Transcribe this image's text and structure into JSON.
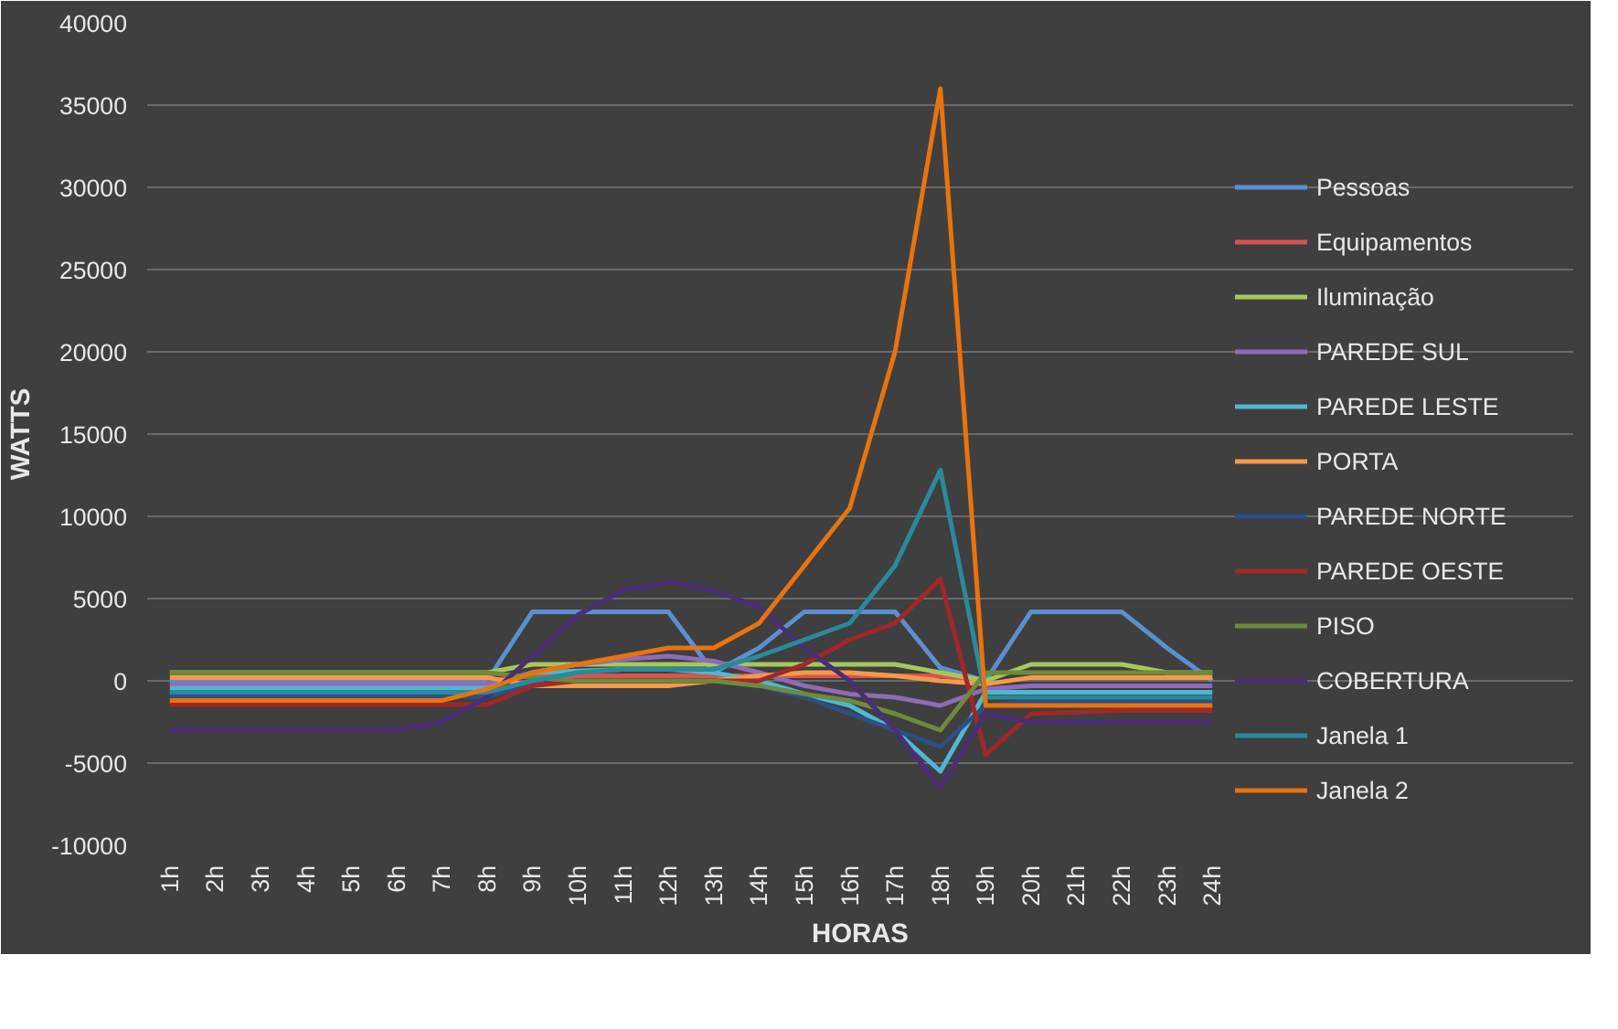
{
  "chart_data": {
    "type": "line",
    "xlabel": "HORAS",
    "ylabel": "WATTS",
    "categories": [
      "1h",
      "2h",
      "3h",
      "4h",
      "5h",
      "6h",
      "7h",
      "8h",
      "9h",
      "10h",
      "11h",
      "12h",
      "13h",
      "14h",
      "15h",
      "16h",
      "17h",
      "18h",
      "19h",
      "20h",
      "21h",
      "22h",
      "23h",
      "24h"
    ],
    "ylim": [
      -10000,
      40000
    ],
    "yticks": [
      -10000,
      -5000,
      0,
      5000,
      10000,
      15000,
      20000,
      25000,
      30000,
      35000,
      40000
    ],
    "grid": "y",
    "legend": "right",
    "marker": "none",
    "line_style": "solid",
    "series": [
      {
        "name": "Pessoas",
        "color": "#5b8fd0",
        "values": [
          0,
          0,
          0,
          0,
          0,
          0,
          0,
          0,
          4200,
          4200,
          4200,
          4200,
          500,
          2000,
          4200,
          4200,
          4200,
          800,
          0,
          4200,
          4200,
          4200,
          2000,
          0
        ]
      },
      {
        "name": "Equipamentos",
        "color": "#d9534f",
        "values": [
          null,
          null,
          null,
          null,
          null,
          null,
          null,
          0,
          300,
          300,
          300,
          300,
          300,
          300,
          300,
          300,
          300,
          300,
          0,
          null,
          null,
          null,
          null,
          null
        ]
      },
      {
        "name": "Iluminação",
        "color": "#a6c85a",
        "values": [
          500,
          500,
          500,
          500,
          500,
          500,
          500,
          500,
          1000,
          1000,
          1000,
          1000,
          1000,
          1000,
          1000,
          1000,
          1000,
          500,
          0,
          1000,
          1000,
          1000,
          500,
          500
        ]
      },
      {
        "name": "PAREDE SUL",
        "color": "#8e6bb8",
        "values": [
          -200,
          -200,
          -200,
          -200,
          -200,
          -200,
          -200,
          -200,
          500,
          1000,
          1300,
          1500,
          1200,
          500,
          -300,
          -800,
          -1000,
          -1500,
          -500,
          -300,
          -300,
          -300,
          -300,
          -300
        ]
      },
      {
        "name": "PAREDE LESTE",
        "color": "#4fb8d0",
        "values": [
          -450,
          -450,
          -450,
          -450,
          -450,
          -450,
          -450,
          -450,
          500,
          600,
          700,
          700,
          500,
          0,
          -800,
          -1500,
          -3000,
          -5500,
          -700,
          -700,
          -700,
          -700,
          -700,
          -700
        ]
      },
      {
        "name": "PORTA",
        "color": "#f49a4a",
        "values": [
          200,
          200,
          200,
          200,
          200,
          200,
          200,
          200,
          -300,
          -300,
          -300,
          -300,
          0,
          300,
          500,
          500,
          300,
          0,
          -200,
          200,
          200,
          200,
          200,
          200
        ]
      },
      {
        "name": "PAREDE NORTE",
        "color": "#2e4f86",
        "values": [
          -950,
          -950,
          -950,
          -950,
          -950,
          -950,
          -950,
          -950,
          -200,
          0,
          0,
          0,
          0,
          -300,
          -1000,
          -2000,
          -3000,
          -4000,
          -1500,
          -1250,
          -1250,
          -1250,
          -1250,
          -1250
        ]
      },
      {
        "name": "PAREDE OESTE",
        "color": "#a0282a",
        "values": [
          -1450,
          -1450,
          -1450,
          -1450,
          -1450,
          -1450,
          -1450,
          -1450,
          -300,
          0,
          0,
          0,
          0,
          0,
          1000,
          2500,
          3500,
          6200,
          -4500,
          -2000,
          -1900,
          -1800,
          -1800,
          -1800
        ]
      },
      {
        "name": "PISO",
        "color": "#6e8a3a",
        "values": [
          500,
          500,
          500,
          500,
          500,
          500,
          500,
          500,
          200,
          0,
          0,
          0,
          0,
          -300,
          -800,
          -1200,
          -2000,
          -3000,
          500,
          500,
          500,
          500,
          500,
          500
        ]
      },
      {
        "name": "COBERTURA",
        "color": "#4a2e78",
        "values": [
          -3000,
          -3000,
          -3000,
          -3000,
          -3000,
          -3000,
          -2500,
          -1000,
          1500,
          4000,
          5500,
          6000,
          5500,
          4500,
          2000,
          0,
          -3000,
          -6500,
          -2000,
          -2500,
          -2500,
          -2500,
          -2500,
          -2500
        ]
      },
      {
        "name": "Janela 1",
        "color": "#2a8a9a",
        "values": [
          -700,
          -700,
          -700,
          -700,
          -700,
          -700,
          -700,
          -700,
          0,
          500,
          700,
          700,
          700,
          1500,
          2500,
          3500,
          7000,
          12800,
          -1000,
          -1000,
          -1000,
          -1000,
          -1000,
          -1000
        ]
      },
      {
        "name": "Janela 2",
        "color": "#e8730f",
        "values": [
          -1200,
          -1200,
          -1200,
          -1200,
          -1200,
          -1200,
          -1200,
          -500,
          500,
          1000,
          1500,
          2000,
          2000,
          3500,
          7000,
          10500,
          20000,
          36000,
          -1500,
          -1500,
          -1500,
          -1500,
          -1500,
          -1500
        ]
      }
    ]
  }
}
